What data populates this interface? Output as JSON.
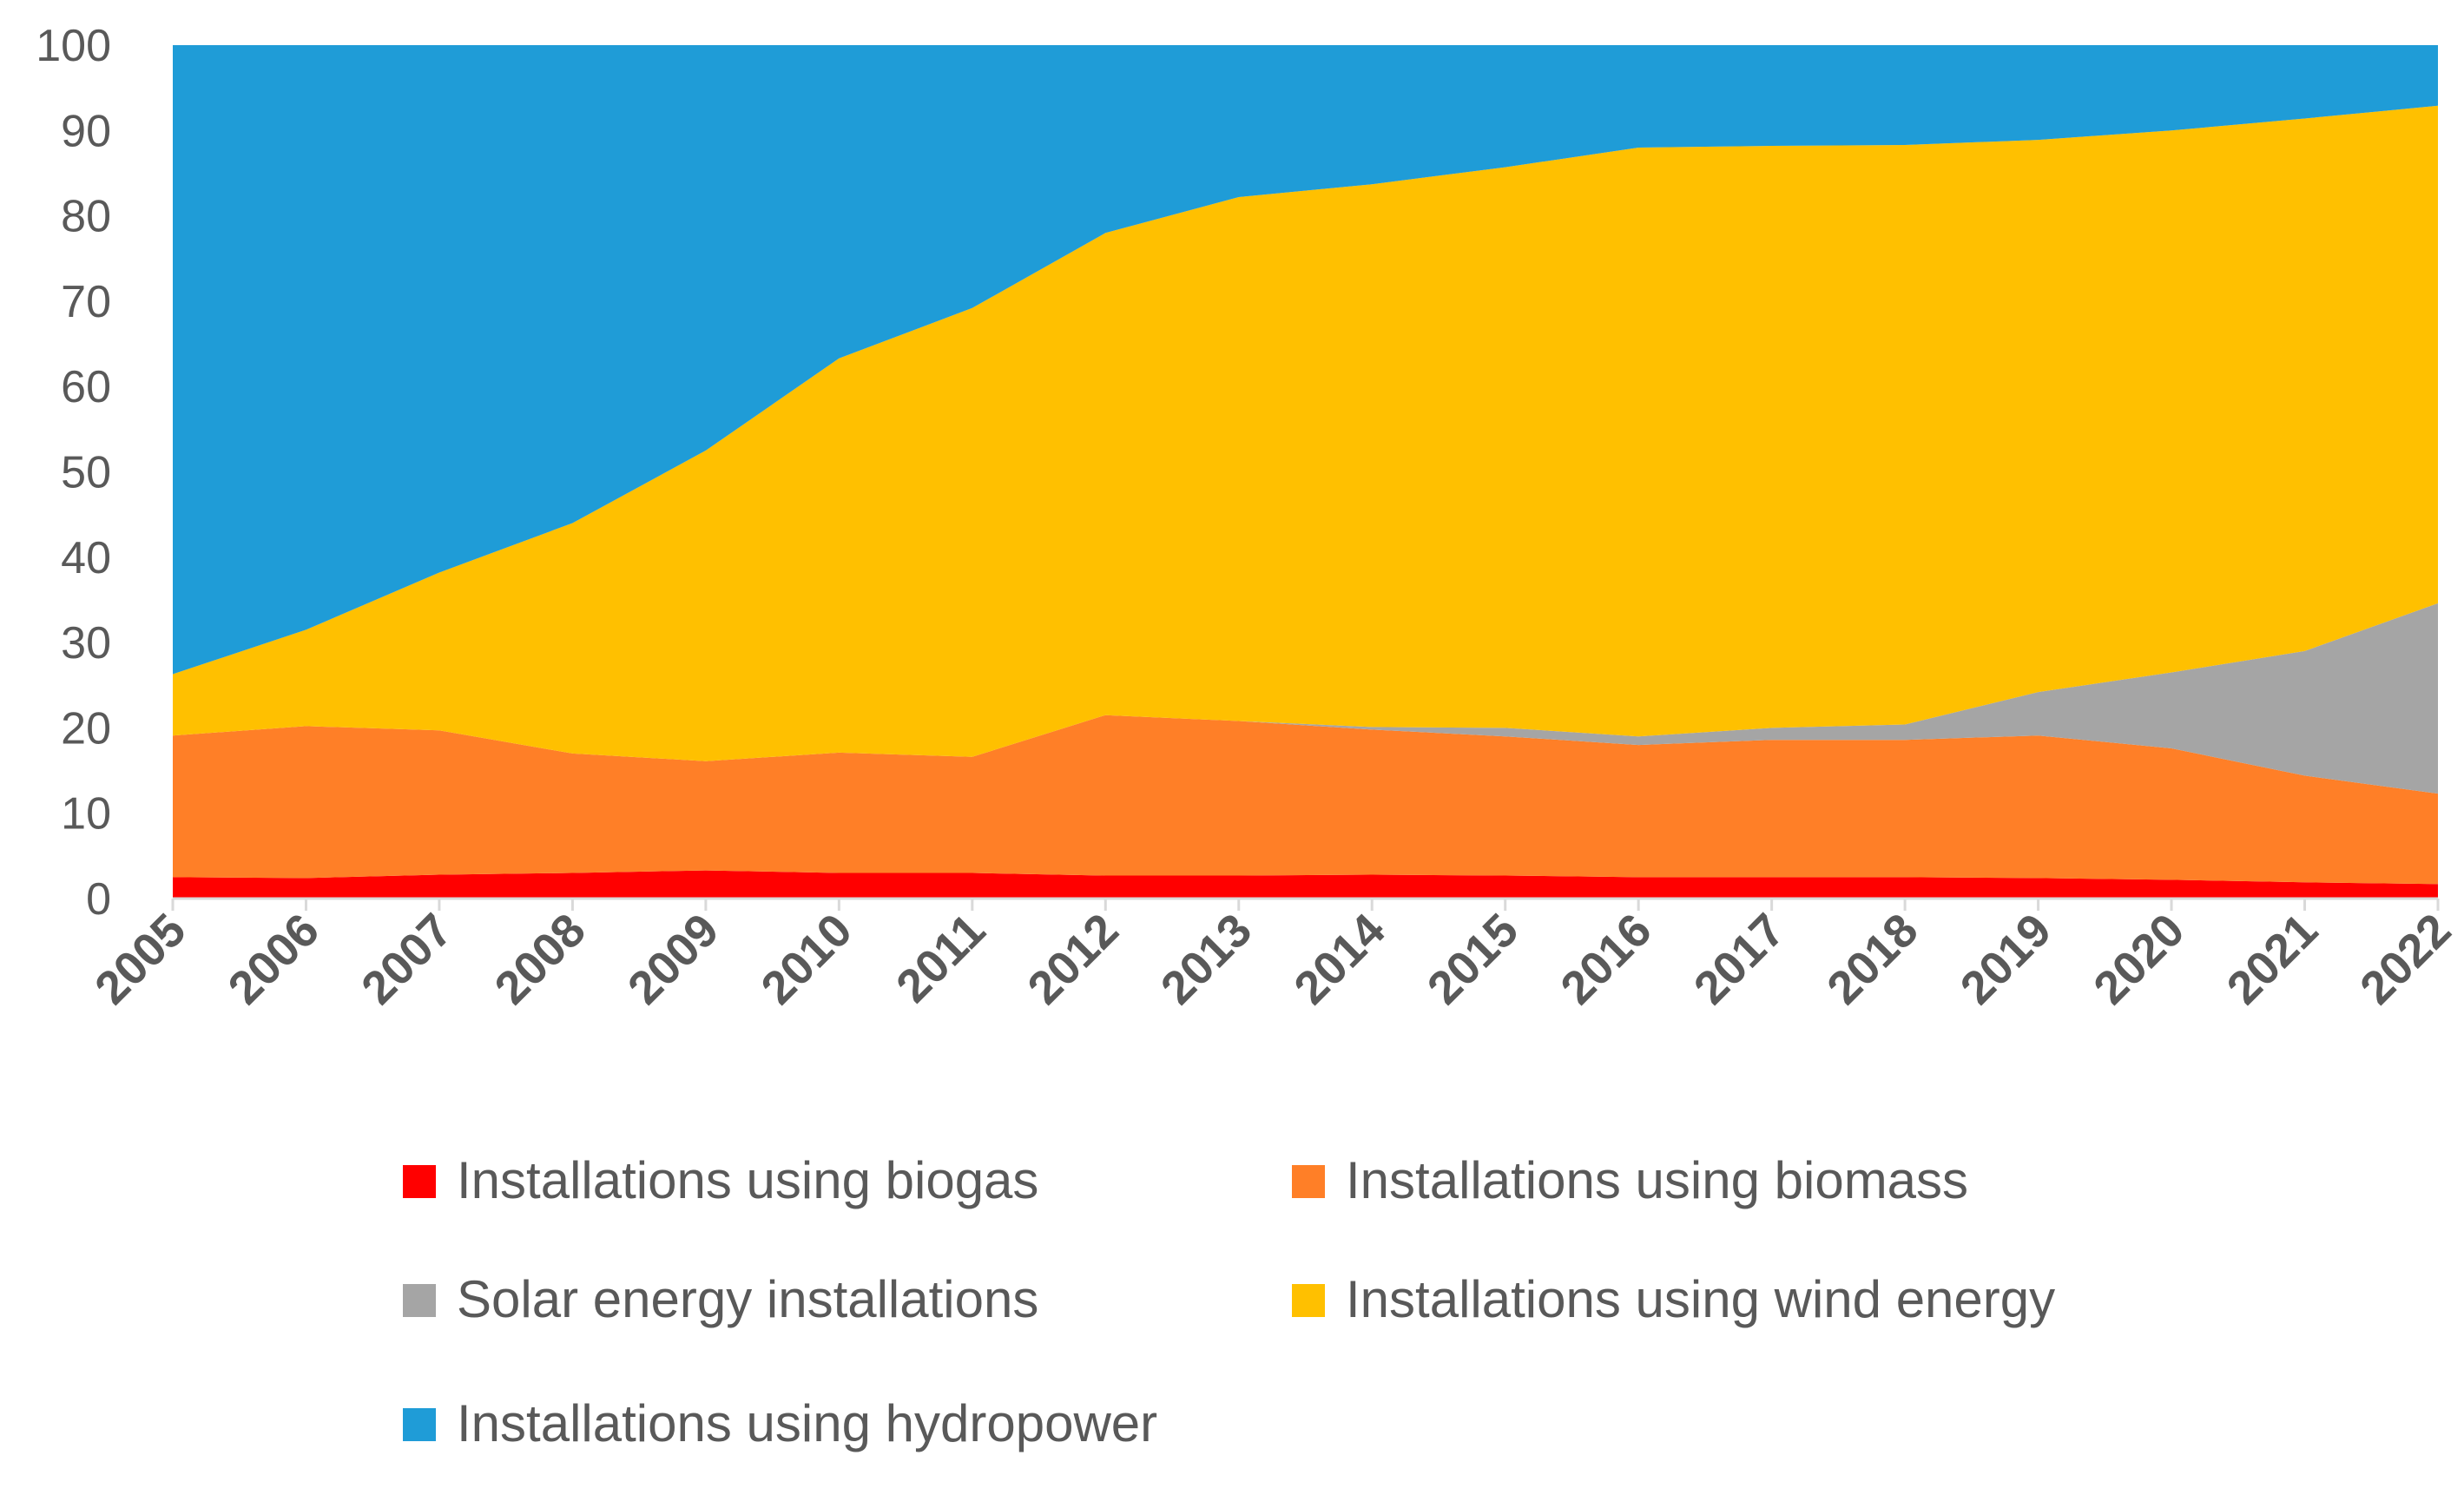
{
  "chart_data": {
    "type": "area",
    "stacked": true,
    "title": "",
    "xlabel": "",
    "ylabel": "",
    "ylim": [
      0,
      100
    ],
    "yticks": [
      "0",
      "10",
      "20",
      "30",
      "40",
      "50",
      "60",
      "70",
      "80",
      "90",
      "100"
    ],
    "x": [
      "2005",
      "2006",
      "2007",
      "2008",
      "2009",
      "2010",
      "2011",
      "2012",
      "2013",
      "2014",
      "2015",
      "2016",
      "2017",
      "2018",
      "2019",
      "2020",
      "2021",
      "2022"
    ],
    "grid": false,
    "legend_position": "bottom",
    "series": [
      {
        "name": "Installations using biogas",
        "color": "#ff0000",
        "values": [
          2.5,
          2.4,
          2.8,
          3.0,
          3.3,
          3.0,
          3.0,
          2.7,
          2.7,
          2.8,
          2.7,
          2.5,
          2.5,
          2.5,
          2.4,
          2.2,
          1.9,
          1.7
        ]
      },
      {
        "name": "Installations using biomass",
        "color": "#ff7f27",
        "values": [
          16.6,
          17.8,
          16.9,
          14.0,
          12.8,
          14.1,
          13.6,
          18.8,
          18.1,
          17.0,
          16.3,
          15.5,
          16.1,
          16.1,
          16.7,
          15.4,
          12.5,
          10.6
        ]
      },
      {
        "name": "Solar energy installations",
        "color": "#a5a5a5",
        "values": [
          0.0,
          0.0,
          0.0,
          0.0,
          0.0,
          0.0,
          0.0,
          0.0,
          0.0,
          0.3,
          1.0,
          1.0,
          1.4,
          1.8,
          5.1,
          8.9,
          14.6,
          22.3
        ]
      },
      {
        "name": "Installations using wind energy",
        "color": "#ffc000",
        "values": [
          7.2,
          11.3,
          18.5,
          27.0,
          36.4,
          46.2,
          52.6,
          56.5,
          61.4,
          63.6,
          65.7,
          69.0,
          68.2,
          67.9,
          64.7,
          63.5,
          62.4,
          58.3
        ]
      },
      {
        "name": "Installations using hydropower",
        "color": "#1f9cd7",
        "values": [
          73.7,
          68.5,
          61.8,
          56.0,
          47.5,
          36.7,
          30.8,
          22.0,
          17.8,
          16.3,
          14.3,
          12.0,
          11.8,
          11.7,
          11.1,
          10.0,
          8.6,
          7.1
        ]
      }
    ]
  }
}
